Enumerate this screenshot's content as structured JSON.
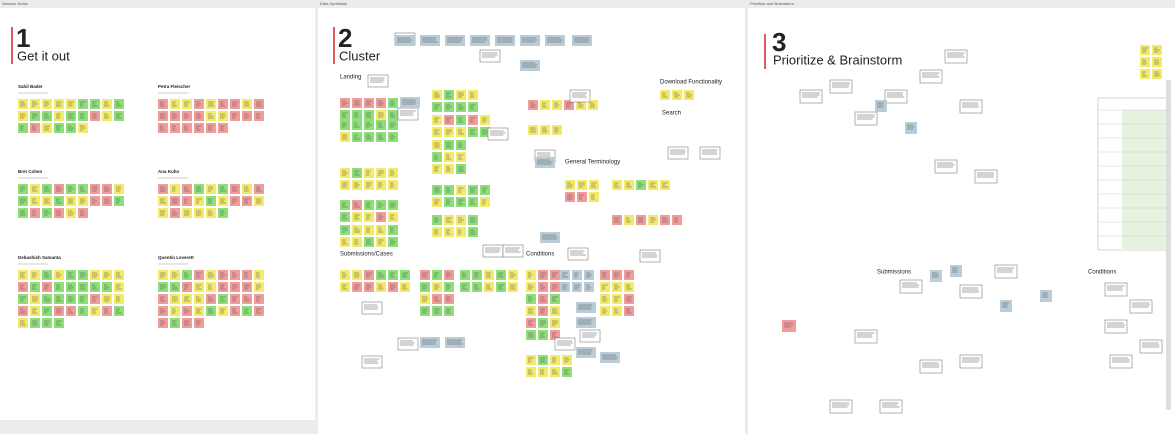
{
  "boards": [
    {
      "label": "Session Notes",
      "number": "1",
      "title": "Get it out",
      "people": [
        "Sahil Bader",
        "Petra Fleischer",
        "Bret Cohen",
        "Ana Kuhn",
        "Debashish Samanta",
        "Quentin Leverett"
      ]
    },
    {
      "label": "Data Synthesis",
      "number": "2",
      "title": "Cluster",
      "groups": [
        "Landing",
        "Submissions/Cases",
        "Conditions",
        "Download Functionality",
        "Search",
        "General Terminology"
      ]
    },
    {
      "label": "Prioritize and Brainstorm",
      "number": "3",
      "title": "Prioritize & Brainstorm",
      "groups": [
        "Submissions",
        "Conditions"
      ]
    }
  ]
}
